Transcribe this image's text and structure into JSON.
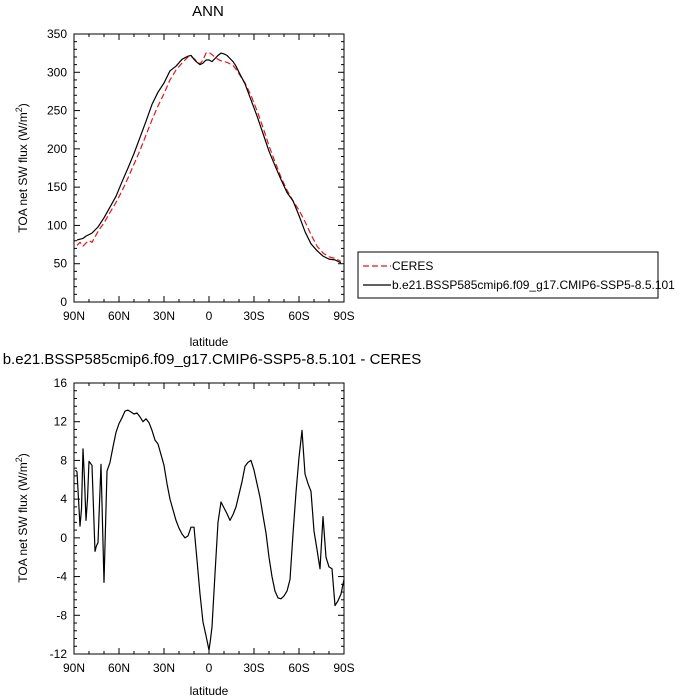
{
  "chart_data": [
    {
      "type": "line",
      "title": "ANN",
      "xlabel": "latitude",
      "ylabel": "TOA net SW flux (W/m",
      "ylabel_sup": "2",
      "ylabel_close": ")",
      "xlim": [
        90,
        -90
      ],
      "ylim": [
        0,
        350
      ],
      "xticks": [
        90,
        60,
        30,
        0,
        -30,
        -60,
        -90
      ],
      "xtick_labels": [
        "90N",
        "60N",
        "30N",
        "0",
        "30S",
        "60S",
        "90S"
      ],
      "yticks": [
        0,
        50,
        100,
        150,
        200,
        250,
        300,
        350
      ],
      "ytick_labels": [
        "0",
        "50",
        "100",
        "150",
        "200",
        "250",
        "300",
        "350"
      ],
      "grid": false,
      "legend": "right",
      "series": [
        {
          "name": "CERES",
          "color": "#e8141c",
          "dash": "dashed",
          "x": [
            88,
            86,
            84,
            82,
            80,
            78,
            76,
            74,
            72,
            70,
            66,
            62,
            58,
            54,
            50,
            46,
            42,
            38,
            34,
            30,
            26,
            22,
            18,
            14,
            12,
            10,
            8,
            6,
            4,
            2,
            0,
            -2,
            -4,
            -6,
            -8,
            -10,
            -12,
            -14,
            -16,
            -18,
            -20,
            -24,
            -28,
            -32,
            -36,
            -40,
            -44,
            -48,
            -52,
            -56,
            -60,
            -64,
            -68,
            -72,
            -76,
            -80,
            -84,
            -88
          ],
          "values": [
            74,
            78,
            73,
            77,
            80,
            78,
            85,
            92,
            98,
            103,
            117,
            130,
            145,
            162,
            180,
            198,
            218,
            238,
            256,
            272,
            290,
            303,
            312,
            320,
            320,
            318,
            314,
            311,
            316,
            325,
            326,
            323,
            320,
            317,
            315,
            314,
            313,
            311,
            309,
            304,
            298,
            286,
            270,
            250,
            228,
            204,
            183,
            163,
            146,
            132,
            120,
            105,
            88,
            73,
            64,
            59,
            57,
            53
          ]
        },
        {
          "name": "b.e21.BSSP585cmip6.f09_g17.CMIP6-SSP5-8.5.101",
          "color": "#000000",
          "dash": "solid",
          "x": [
            88,
            86,
            84,
            82,
            80,
            78,
            76,
            74,
            72,
            70,
            66,
            62,
            58,
            54,
            50,
            46,
            42,
            38,
            34,
            30,
            26,
            22,
            18,
            14,
            12,
            10,
            8,
            6,
            4,
            2,
            0,
            -2,
            -4,
            -6,
            -8,
            -10,
            -12,
            -14,
            -16,
            -18,
            -20,
            -24,
            -28,
            -32,
            -36,
            -40,
            -44,
            -48,
            -52,
            -56,
            -60,
            -64,
            -68,
            -72,
            -76,
            -80,
            -84,
            -88
          ],
          "values": [
            81,
            82,
            83,
            86,
            88,
            90,
            94,
            98,
            104,
            110,
            124,
            138,
            157,
            175,
            194,
            215,
            236,
            258,
            274,
            286,
            302,
            308,
            317,
            321,
            322,
            317,
            313,
            310,
            312,
            316,
            316,
            314,
            318,
            322,
            325,
            324,
            322,
            318,
            314,
            308,
            300,
            285,
            264,
            243,
            220,
            197,
            178,
            160,
            143,
            132,
            113,
            92,
            76,
            67,
            60,
            56,
            55,
            51
          ]
        }
      ]
    },
    {
      "type": "line",
      "title": "b.e21.BSSP585cmip6.f09_g17.CMIP6-SSP5-8.5.101 - CERES",
      "xlabel": "latitude",
      "ylabel": "TOA net SW flux (W/m",
      "ylabel_sup": "2",
      "ylabel_close": ")",
      "xlim": [
        90,
        -90
      ],
      "ylim": [
        -12,
        16
      ],
      "xticks": [
        90,
        60,
        30,
        0,
        -30,
        -60,
        -90
      ],
      "xtick_labels": [
        "90N",
        "60N",
        "30N",
        "0",
        "30S",
        "60S",
        "90S"
      ],
      "yticks": [
        -12,
        -8,
        -4,
        0,
        4,
        8,
        12,
        16
      ],
      "ytick_labels": [
        "-12",
        "-8",
        "-4",
        "0",
        "4",
        "8",
        "12",
        "16"
      ],
      "grid": false,
      "series": [
        {
          "color": "#000000",
          "dash": "solid",
          "x": [
            89,
            88,
            87,
            86,
            85,
            84,
            83,
            82,
            81,
            80,
            79,
            78,
            76,
            75,
            74,
            72,
            70,
            68,
            66,
            64,
            62,
            60,
            58,
            56,
            54,
            52,
            50,
            48,
            46,
            44,
            42,
            40,
            38,
            36,
            34,
            32,
            30,
            28,
            26,
            24,
            22,
            20,
            18,
            16,
            14,
            12,
            10,
            8,
            6,
            4,
            2,
            0,
            -1,
            -2,
            -4,
            -6,
            -8,
            -10,
            -12,
            -14,
            -16,
            -18,
            -20,
            -22,
            -24,
            -26,
            -28,
            -30,
            -32,
            -34,
            -36,
            -38,
            -40,
            -42,
            -44,
            -46,
            -48,
            -50,
            -52,
            -54,
            -56,
            -58,
            -60,
            -62,
            -64,
            -66,
            -68,
            -70,
            -72,
            -74,
            -76,
            -78,
            -80,
            -82,
            -84,
            -86,
            -88,
            -90
          ],
          "values": [
            7,
            6.8,
            4,
            1.2,
            3,
            9.2,
            6,
            1.8,
            4,
            7.9,
            7.7,
            7.5,
            -1.4,
            -0.8,
            -0.5,
            7.6,
            -4.6,
            6.9,
            7.8,
            9.4,
            10.9,
            11.8,
            12.4,
            13.1,
            13.2,
            13,
            12.8,
            12.9,
            12.5,
            12,
            12.3,
            11.9,
            11.1,
            10.1,
            9.7,
            8.6,
            7.5,
            5.6,
            4,
            2.9,
            1.8,
            1,
            0.4,
            0,
            0.2,
            1.1,
            1.1,
            -2.3,
            -5.8,
            -8.7,
            -10.1,
            -11.6,
            -10.5,
            -9.2,
            -3.7,
            1.6,
            3.7,
            3.1,
            2.5,
            1.8,
            2.4,
            3.2,
            4.5,
            5.8,
            7.4,
            7.8,
            8,
            7,
            5.6,
            4.2,
            2.3,
            0.5,
            -2,
            -4,
            -5.5,
            -6.2,
            -6.3,
            -6,
            -5.5,
            -4.3,
            0.4,
            4.7,
            8.3,
            11.1,
            6.6,
            5.6,
            4.8,
            0.7,
            -1.2,
            -3.2,
            2.2,
            -2,
            -3,
            -3.2,
            -7,
            -6.5,
            -5.8,
            -4.3
          ]
        }
      ]
    }
  ]
}
